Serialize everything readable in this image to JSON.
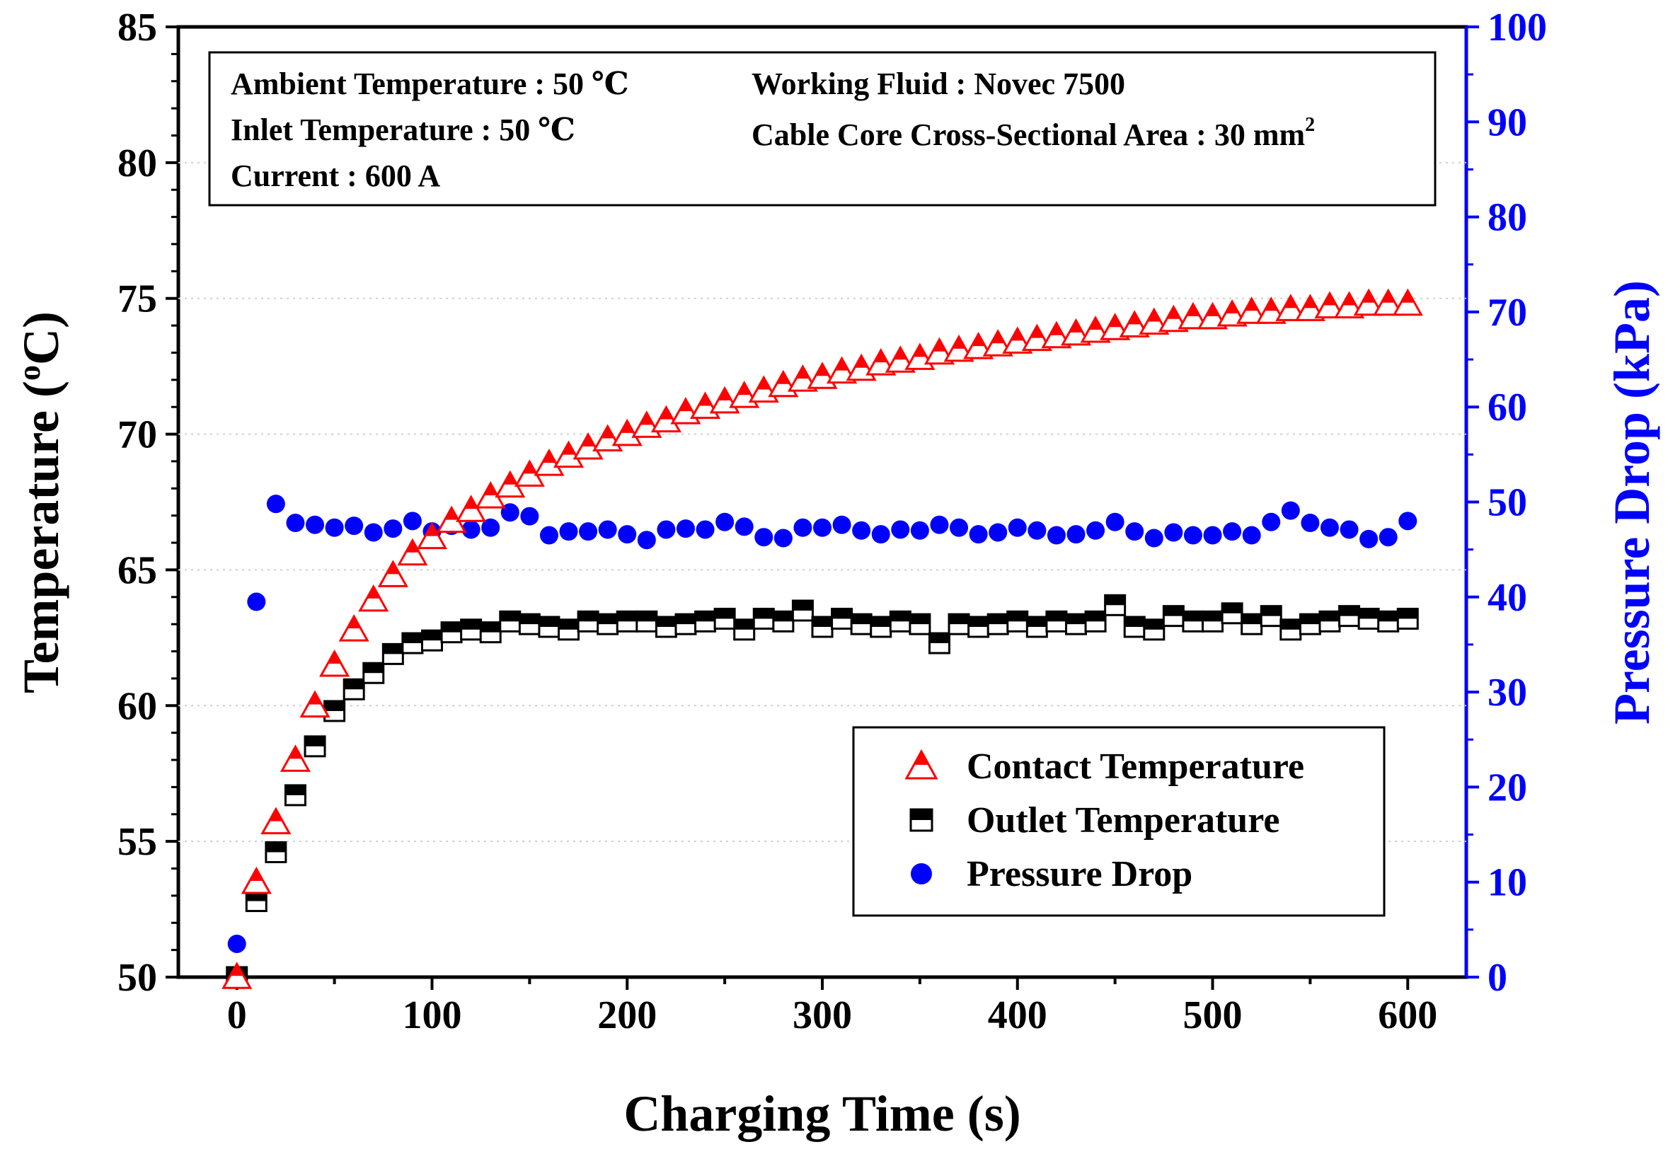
{
  "chart_data": {
    "type": "scatter",
    "xlabel": "Charging Time (s)",
    "ylabel_left": "Temperature (",
    "ylabel_left_sup": "o",
    "ylabel_left_unit": "C)",
    "ylabel_right": "Pressure Drop (kPa)",
    "xlim": [
      -30,
      630
    ],
    "ylim_left": [
      50,
      85
    ],
    "ylim_right": [
      0,
      100
    ],
    "x_ticks": [
      "0",
      "100",
      "200",
      "300",
      "400",
      "500",
      "600"
    ],
    "y_left_ticks": [
      "50",
      "55",
      "60",
      "65",
      "70",
      "75",
      "80",
      "85"
    ],
    "y_right_ticks": [
      "0",
      "10",
      "20",
      "30",
      "40",
      "50",
      "60",
      "70",
      "80",
      "90",
      "100"
    ],
    "annotations": {
      "ambient": "Ambient Temperature : 50 ℃",
      "inlet": "Inlet Temperature : 50 ℃",
      "current": "Current : 600 A",
      "fluid": "Working Fluid : Novec 7500",
      "cable": "Cable Core Cross-Sectional Area : 30 mm",
      "cable_sup": "2"
    },
    "legend": {
      "contact": "Contact Temperature",
      "outlet": "Outlet Temperature",
      "pressure": "Pressure Drop"
    },
    "x": [
      0,
      10,
      20,
      30,
      40,
      50,
      60,
      70,
      80,
      90,
      100,
      110,
      120,
      130,
      140,
      150,
      160,
      170,
      180,
      190,
      200,
      210,
      220,
      230,
      240,
      250,
      260,
      270,
      280,
      290,
      300,
      310,
      320,
      330,
      340,
      350,
      360,
      370,
      380,
      390,
      400,
      410,
      420,
      430,
      440,
      450,
      460,
      470,
      480,
      490,
      500,
      510,
      520,
      530,
      540,
      550,
      560,
      570,
      580,
      590,
      600
    ],
    "series": [
      {
        "name": "Contact Temperature",
        "axis": "left",
        "color": "#ff0000",
        "values": [
          50.0,
          53.5,
          55.7,
          58.0,
          60.0,
          61.5,
          62.8,
          63.9,
          64.8,
          65.6,
          66.2,
          66.8,
          67.2,
          67.7,
          68.1,
          68.5,
          68.9,
          69.2,
          69.5,
          69.8,
          70.0,
          70.3,
          70.5,
          70.8,
          71.0,
          71.2,
          71.4,
          71.6,
          71.8,
          72.0,
          72.1,
          72.3,
          72.4,
          72.6,
          72.7,
          72.8,
          73.0,
          73.1,
          73.2,
          73.3,
          73.4,
          73.5,
          73.6,
          73.7,
          73.8,
          73.9,
          74.0,
          74.1,
          74.2,
          74.3,
          74.3,
          74.4,
          74.5,
          74.5,
          74.6,
          74.6,
          74.7,
          74.7,
          74.8,
          74.8,
          74.8
        ]
      },
      {
        "name": "Outlet Temperature",
        "axis": "left",
        "color": "#000000",
        "values": [
          50.0,
          52.8,
          54.6,
          56.7,
          58.5,
          59.8,
          60.6,
          61.2,
          61.9,
          62.3,
          62.4,
          62.7,
          62.8,
          62.7,
          63.1,
          63.0,
          62.9,
          62.8,
          63.1,
          63.0,
          63.1,
          63.1,
          62.9,
          63.0,
          63.1,
          63.2,
          62.8,
          63.2,
          63.1,
          63.5,
          62.9,
          63.2,
          63.0,
          62.9,
          63.1,
          63.0,
          62.3,
          63.0,
          62.9,
          63.0,
          63.1,
          62.9,
          63.1,
          63.0,
          63.1,
          63.7,
          62.9,
          62.8,
          63.3,
          63.1,
          63.1,
          63.4,
          63.0,
          63.3,
          62.8,
          63.0,
          63.1,
          63.3,
          63.2,
          63.1,
          63.2
        ]
      },
      {
        "name": "Pressure Drop",
        "axis": "right",
        "color": "#0000ff",
        "values": [
          3.5,
          39.5,
          49.8,
          47.8,
          47.6,
          47.3,
          47.5,
          46.8,
          47.2,
          48.0,
          46.9,
          47.5,
          47.1,
          47.3,
          48.9,
          48.5,
          46.5,
          46.9,
          46.9,
          47.1,
          46.6,
          46.0,
          47.1,
          47.2,
          47.1,
          47.9,
          47.4,
          46.3,
          46.2,
          47.3,
          47.3,
          47.6,
          47.0,
          46.6,
          47.1,
          47.0,
          47.6,
          47.3,
          46.6,
          46.8,
          47.3,
          47.0,
          46.5,
          46.6,
          47.0,
          47.9,
          46.9,
          46.2,
          46.8,
          46.5,
          46.5,
          46.9,
          46.5,
          47.9,
          49.1,
          47.8,
          47.3,
          47.1,
          46.1,
          46.3,
          48.0
        ]
      }
    ]
  }
}
